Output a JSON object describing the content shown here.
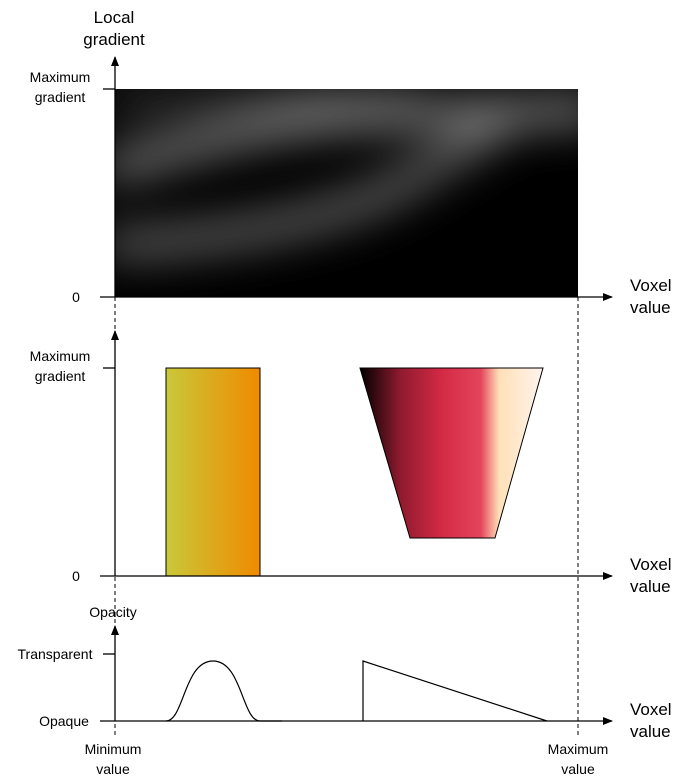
{
  "top_panel": {
    "y_axis_label_line1": "Local",
    "y_axis_label_line2": "gradient",
    "y_max_label_line1": "Maximum",
    "y_max_label_line2": "gradient",
    "y_zero_label": "0",
    "x_axis_label_line1": "Voxel",
    "x_axis_label_line2": "value",
    "histogram_colors": [
      "#000000",
      "#8a8a8a"
    ]
  },
  "middle_panel": {
    "y_max_label_line1": "Maximum",
    "y_max_label_line2": "gradient",
    "y_zero_label": "0",
    "x_axis_label_line1": "Voxel",
    "x_axis_label_line2": "value",
    "rect_widget_colors": [
      "#c9c83a",
      "#f08a00"
    ],
    "trapezoid_widget_colors": [
      "#000000",
      "#8f1a2e",
      "#d42a45",
      "#e4455c",
      "#ffe0b8",
      "#fff4ee"
    ]
  },
  "bottom_panel": {
    "y_axis_label": "Opacity",
    "y_top_label": "Transparent",
    "y_bottom_label": "Opaque",
    "x_axis_label_line1": "Voxel",
    "x_axis_label_line2": "value",
    "x_min_label_line1": "Minimum",
    "x_min_label_line2": "value",
    "x_max_label_line1": "Maximum",
    "x_max_label_line2": "value"
  }
}
